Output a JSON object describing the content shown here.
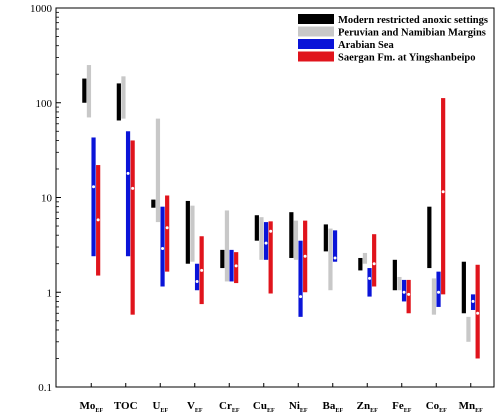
{
  "chart_data": {
    "type": "range-bar",
    "yscale": "log",
    "ylim": [
      0.1,
      1000
    ],
    "yticks": [
      {
        "value": 0.1,
        "label": "0.1"
      },
      {
        "value": 1,
        "label": "1"
      },
      {
        "value": 10,
        "label": "10"
      },
      {
        "value": 100,
        "label": "100"
      },
      {
        "value": 1000,
        "label": "1000"
      }
    ],
    "categories": [
      {
        "main": "Mo",
        "sub": "EF"
      },
      {
        "main": "TOC",
        "sub": ""
      },
      {
        "main": "U",
        "sub": "EF"
      },
      {
        "main": "V",
        "sub": "EF"
      },
      {
        "main": "Cr",
        "sub": "EF"
      },
      {
        "main": "Cu",
        "sub": "EF"
      },
      {
        "main": "Ni",
        "sub": "EF"
      },
      {
        "main": "Ba",
        "sub": "EF"
      },
      {
        "main": "Zn",
        "sub": "EF"
      },
      {
        "main": "Fe",
        "sub": "EF"
      },
      {
        "main": "Co",
        "sub": "EF"
      },
      {
        "main": "Mn",
        "sub": "EF"
      }
    ],
    "series": [
      {
        "name": "Modern restricted anoxic settings",
        "color": "#000000",
        "ranges": [
          [
            100,
            180
          ],
          [
            65,
            160
          ],
          [
            7.8,
            9.5
          ],
          [
            2,
            9.2
          ],
          [
            1.8,
            2.8
          ],
          [
            3.5,
            6.5
          ],
          [
            2.3,
            7
          ],
          [
            2.7,
            5.2
          ],
          [
            1.7,
            2.3
          ],
          [
            1.05,
            2.2
          ],
          [
            1.8,
            8
          ],
          [
            0.6,
            2.1
          ]
        ],
        "medians": [
          null,
          null,
          null,
          null,
          null,
          null,
          null,
          null,
          null,
          null,
          null,
          null
        ]
      },
      {
        "name": "Peruvian and Namibian Margins",
        "color": "#c8c8c8",
        "ranges": [
          [
            70,
            250
          ],
          [
            68,
            190
          ],
          [
            5.5,
            68
          ],
          [
            2.1,
            8.2
          ],
          [
            1.3,
            7.3
          ],
          [
            2.2,
            6.2
          ],
          [
            2.2,
            5.7
          ],
          [
            1.05,
            4.7
          ],
          [
            2,
            2.6
          ],
          [
            1.05,
            1.45
          ],
          [
            0.58,
            1.4
          ],
          [
            0.3,
            0.55
          ]
        ],
        "medians": [
          null,
          null,
          null,
          null,
          null,
          null,
          null,
          null,
          null,
          null,
          null,
          null
        ]
      },
      {
        "name": "Arabian Sea",
        "color": "#0a14d8",
        "ranges": [
          [
            2.4,
            43
          ],
          [
            2.4,
            50
          ],
          [
            1.15,
            8
          ],
          [
            1.05,
            2
          ],
          [
            1.3,
            2.8
          ],
          [
            2.2,
            5.5
          ],
          [
            0.55,
            3.5
          ],
          [
            2.1,
            4.5
          ],
          [
            0.9,
            1.8
          ],
          [
            0.8,
            1.35
          ],
          [
            0.7,
            1.65
          ],
          [
            0.65,
            0.95
          ]
        ],
        "medians": [
          13,
          18,
          2.9,
          1.3,
          null,
          3.3,
          0.9,
          2.3,
          1.4,
          1,
          1,
          0.8
        ]
      },
      {
        "name": "Saergan Fm. at Yingshanbeipo",
        "color": "#e0141c",
        "ranges": [
          [
            1.5,
            22
          ],
          [
            0.58,
            40
          ],
          [
            1.65,
            10.5
          ],
          [
            0.75,
            3.9
          ],
          [
            1.25,
            2.65
          ],
          [
            0.97,
            5.6
          ],
          [
            1,
            5.7
          ],
          [
            null,
            null
          ],
          [
            1.15,
            4.1
          ],
          [
            0.6,
            1.35
          ],
          [
            0.95,
            112
          ],
          [
            0.2,
            1.95
          ]
        ],
        "medians": [
          5.8,
          12.5,
          4.8,
          1.7,
          1.9,
          4.4,
          2.4,
          null,
          2,
          0.95,
          11.5,
          0.6
        ]
      }
    ],
    "legend_position": "top-right"
  }
}
